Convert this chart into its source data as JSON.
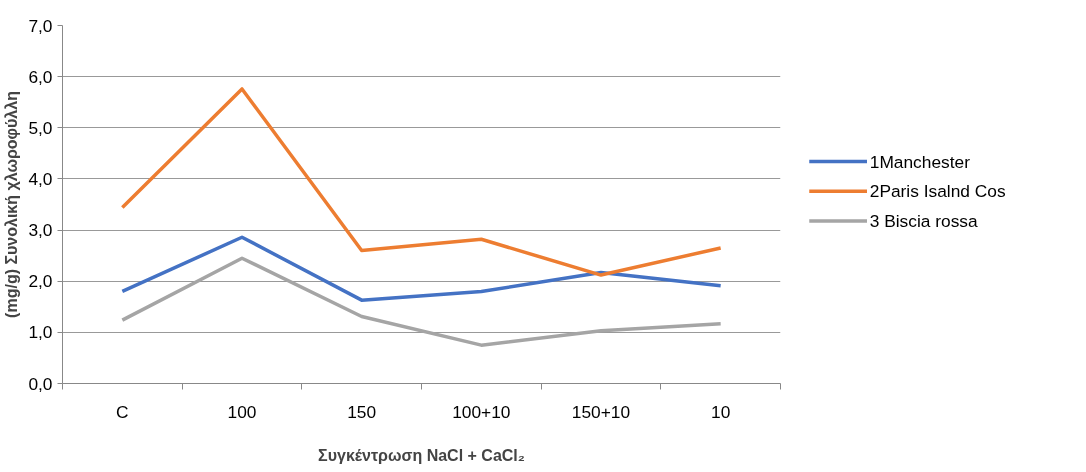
{
  "chart_data": {
    "type": "line",
    "xlabel": "Συγκέντρωση NaCl + CaCl₂",
    "ylabel": "(mg/g) Συνολική χλωροφύλλη",
    "categories": [
      "C",
      "100",
      "150",
      "100+10",
      "150+10",
      "10"
    ],
    "series": [
      {
        "name": "1Manchester",
        "color": "#4472c4",
        "values": [
          1.8,
          2.86,
          1.63,
          1.8,
          2.17,
          1.91
        ]
      },
      {
        "name": "2Paris Isalnd Cos",
        "color": "#ed7d31",
        "values": [
          3.44,
          5.76,
          2.6,
          2.82,
          2.12,
          2.65
        ]
      },
      {
        "name": "3 Biscia rossa",
        "color": "#a5a5a5",
        "values": [
          1.24,
          2.45,
          1.31,
          0.75,
          1.03,
          1.17
        ]
      }
    ],
    "ylim": [
      0,
      7
    ],
    "yticks": [
      {
        "value": 0,
        "label": "0,0"
      },
      {
        "value": 1,
        "label": "1,0"
      },
      {
        "value": 2,
        "label": "2,0"
      },
      {
        "value": 3,
        "label": "3,0"
      },
      {
        "value": 4,
        "label": "4,0"
      },
      {
        "value": 5,
        "label": "5,0"
      },
      {
        "value": 6,
        "label": "6,0"
      },
      {
        "value": 7,
        "label": "7,0"
      }
    ],
    "grid": "y",
    "legend": "right",
    "marker": "none",
    "line_style": "solid"
  }
}
